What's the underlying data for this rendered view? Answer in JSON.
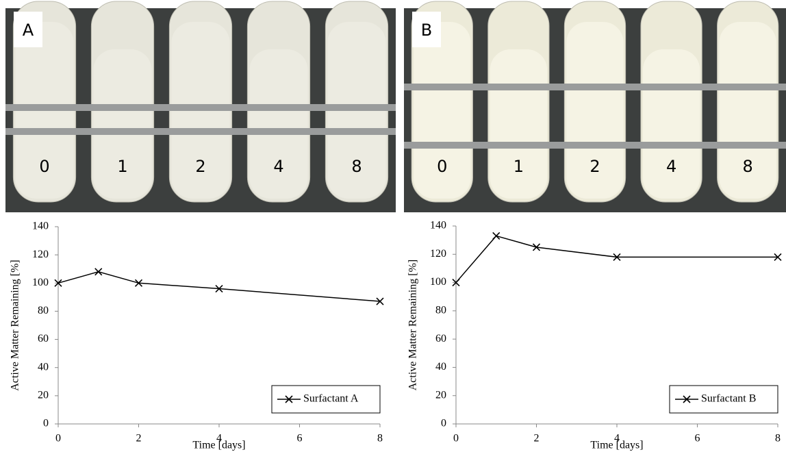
{
  "photos": [
    {
      "label": "A",
      "tubes": [
        "0",
        "1",
        "2",
        "4",
        "8"
      ]
    },
    {
      "label": "B",
      "tubes": [
        "0",
        "1",
        "2",
        "4",
        "8"
      ]
    }
  ],
  "chart_data": [
    {
      "type": "line",
      "x_label": "Time [days]",
      "y_label": "Active Matter Remaining [%]",
      "x": [
        0,
        1,
        2,
        4,
        8
      ],
      "series": [
        {
          "name": "Surfactant A",
          "color": "#000000",
          "values": [
            100,
            108,
            100,
            96,
            87
          ]
        }
      ],
      "xlim": [
        0,
        8
      ],
      "xticks": [
        0,
        2,
        4,
        6,
        8
      ],
      "ylim": [
        0,
        140
      ],
      "yticks": [
        0,
        20,
        40,
        60,
        80,
        100,
        120,
        140
      ],
      "legend": "lower right"
    },
    {
      "type": "line",
      "x_label": "Time [days]",
      "y_label": "Active Matter Remaining [%]",
      "x": [
        0,
        1,
        2,
        4,
        8
      ],
      "series": [
        {
          "name": "Surfactant B",
          "color": "#000000",
          "values": [
            100,
            133,
            125,
            118,
            118
          ]
        }
      ],
      "xlim": [
        0,
        8
      ],
      "xticks": [
        0,
        2,
        4,
        6,
        8
      ],
      "ylim": [
        0,
        140
      ],
      "yticks": [
        0,
        20,
        40,
        60,
        80,
        100,
        120,
        140
      ],
      "legend": "lower right"
    }
  ]
}
